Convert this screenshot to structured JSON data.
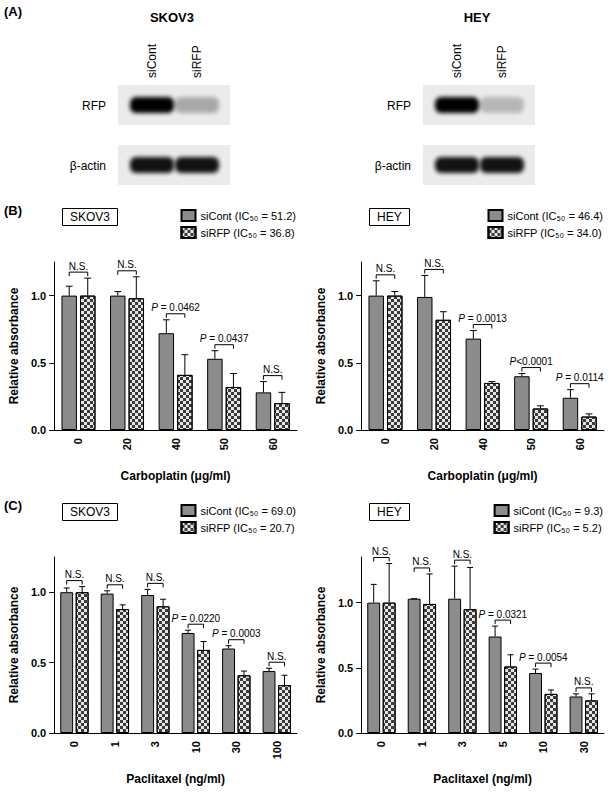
{
  "panel_a": {
    "label": "(A)",
    "blots": [
      {
        "title": "SKOV3",
        "lanes": [
          "siCont",
          "siRFP"
        ],
        "rows": [
          "RFP",
          "β-actin"
        ]
      },
      {
        "title": "HEY",
        "lanes": [
          "siCont",
          "siRFP"
        ],
        "rows": [
          "RFP",
          "β-actin"
        ]
      }
    ]
  },
  "chart_data": [
    {
      "type": "bar",
      "panel_label": "(B)",
      "title": "SKOV3",
      "x_label": "Carboplatin (μg/ml)",
      "y_label": "Relative absorbance",
      "categories": [
        "0",
        "20",
        "40",
        "50",
        "60"
      ],
      "series": [
        {
          "name": "siCont (IC₅₀ = 51.2)",
          "color": "#8c8c8c",
          "values": [
            1.0,
            1.0,
            0.72,
            0.53,
            0.28
          ],
          "errors": [
            0.07,
            0.03,
            0.1,
            0.06,
            0.08
          ]
        },
        {
          "name": "siRFP (IC₅₀ = 36.8)",
          "color": "#e6e6e6",
          "values": [
            1.0,
            0.98,
            0.41,
            0.32,
            0.2
          ],
          "errors": [
            0.13,
            0.16,
            0.15,
            0.1,
            0.08
          ]
        }
      ],
      "annotations": [
        {
          "category": "0",
          "text": "N.S."
        },
        {
          "category": "20",
          "text": "N.S."
        },
        {
          "category": "40",
          "text": "P = 0.0462"
        },
        {
          "category": "50",
          "text": "P = 0.0437"
        },
        {
          "category": "60",
          "text": "N.S."
        }
      ],
      "ylim": [
        0,
        1.25
      ],
      "yticks": [
        {
          "value": 0,
          "label": "0.0"
        },
        {
          "value": 0.5,
          "label": "0.5"
        },
        {
          "value": 1,
          "label": "1.0"
        }
      ],
      "grid": false
    },
    {
      "type": "bar",
      "title": "HEY",
      "x_label": "Carboplatin (μg/ml)",
      "y_label": "Relative absorbance",
      "categories": [
        "0",
        "20",
        "40",
        "50",
        "60"
      ],
      "series": [
        {
          "name": "siCont (IC₅₀ = 46.4)",
          "color": "#8c8c8c",
          "values": [
            1.0,
            0.99,
            0.68,
            0.4,
            0.24
          ],
          "errors": [
            0.11,
            0.16,
            0.06,
            0.02,
            0.06
          ]
        },
        {
          "name": "siRFP (IC₅₀ = 34.0)",
          "color": "#e6e6e6",
          "values": [
            1.0,
            0.82,
            0.35,
            0.16,
            0.1
          ],
          "errors": [
            0.03,
            0.06,
            0.01,
            0.02,
            0.02
          ]
        }
      ],
      "annotations": [
        {
          "category": "0",
          "text": "N.S."
        },
        {
          "category": "20",
          "text": "N.S."
        },
        {
          "category": "40",
          "text": "P = 0.0013"
        },
        {
          "category": "50",
          "text": "P<0.0001"
        },
        {
          "category": "60",
          "text": "P = 0.0114"
        }
      ],
      "ylim": [
        0,
        1.25
      ],
      "yticks": [
        {
          "value": 0,
          "label": "0.0"
        },
        {
          "value": 0.5,
          "label": "0.5"
        },
        {
          "value": 1,
          "label": "1.0"
        }
      ],
      "grid": false
    },
    {
      "type": "bar",
      "panel_label": "(C)",
      "title": "SKOV3",
      "x_label": "Paclitaxel (ng/ml)",
      "y_label": "Relative absorbance",
      "categories": [
        "0",
        "1",
        "3",
        "10",
        "30",
        "100"
      ],
      "series": [
        {
          "name": "siCont (IC₅₀ = 69.0)",
          "color": "#8c8c8c",
          "values": [
            1.0,
            0.99,
            0.98,
            0.71,
            0.6,
            0.44
          ],
          "errors": [
            0.03,
            0.02,
            0.04,
            0.02,
            0.02,
            0.02
          ]
        },
        {
          "name": "siRFP (IC₅₀ = 20.7)",
          "color": "#e6e6e6",
          "values": [
            1.0,
            0.88,
            0.9,
            0.59,
            0.41,
            0.34
          ],
          "errors": [
            0.04,
            0.03,
            0.05,
            0.06,
            0.03,
            0.07
          ]
        }
      ],
      "annotations": [
        {
          "category": "0",
          "text": "N.S."
        },
        {
          "category": "1",
          "text": "N.S."
        },
        {
          "category": "3",
          "text": "N.S."
        },
        {
          "category": "10",
          "text": "P = 0.0220"
        },
        {
          "category": "30",
          "text": "P = 0.0003"
        },
        {
          "category": "100",
          "text": "N.S."
        }
      ],
      "ylim": [
        0,
        1.25
      ],
      "yticks": [
        {
          "value": 0,
          "label": "0.0"
        },
        {
          "value": 0.5,
          "label": "0.5"
        },
        {
          "value": 1,
          "label": "1.0"
        }
      ],
      "grid": false
    },
    {
      "type": "bar",
      "title": "HEY",
      "x_label": "Paclitaxel (ng/ml)",
      "y_label": "Relative absorbance",
      "categories": [
        "0",
        "1",
        "3",
        "5",
        "10",
        "30"
      ],
      "series": [
        {
          "name": "siCont (IC₅₀ = 9.3)",
          "color": "#8c8c8c",
          "values": [
            1.0,
            1.03,
            1.03,
            0.74,
            0.46,
            0.28
          ],
          "errors": [
            0.14,
            0.0,
            0.25,
            0.08,
            0.03,
            0.02
          ]
        },
        {
          "name": "siRFP (IC₅₀ = 5.2)",
          "color": "#e6e6e6",
          "values": [
            1.0,
            0.99,
            0.95,
            0.51,
            0.3,
            0.25
          ],
          "errors": [
            0.3,
            0.23,
            0.32,
            0.09,
            0.03,
            0.05
          ]
        }
      ],
      "annotations": [
        {
          "category": "0",
          "text": "N.S."
        },
        {
          "category": "1",
          "text": "N.S."
        },
        {
          "category": "3",
          "text": "N.S."
        },
        {
          "category": "5",
          "text": "P = 0.0321"
        },
        {
          "category": "10",
          "text": "P = 0.0054"
        },
        {
          "category": "30",
          "text": "N.S."
        }
      ],
      "ylim": [
        0,
        1.35
      ],
      "yticks": [
        {
          "value": 0,
          "label": "0.0"
        },
        {
          "value": 0.5,
          "label": "0.5"
        },
        {
          "value": 1,
          "label": "1.0"
        }
      ],
      "grid": false
    }
  ]
}
